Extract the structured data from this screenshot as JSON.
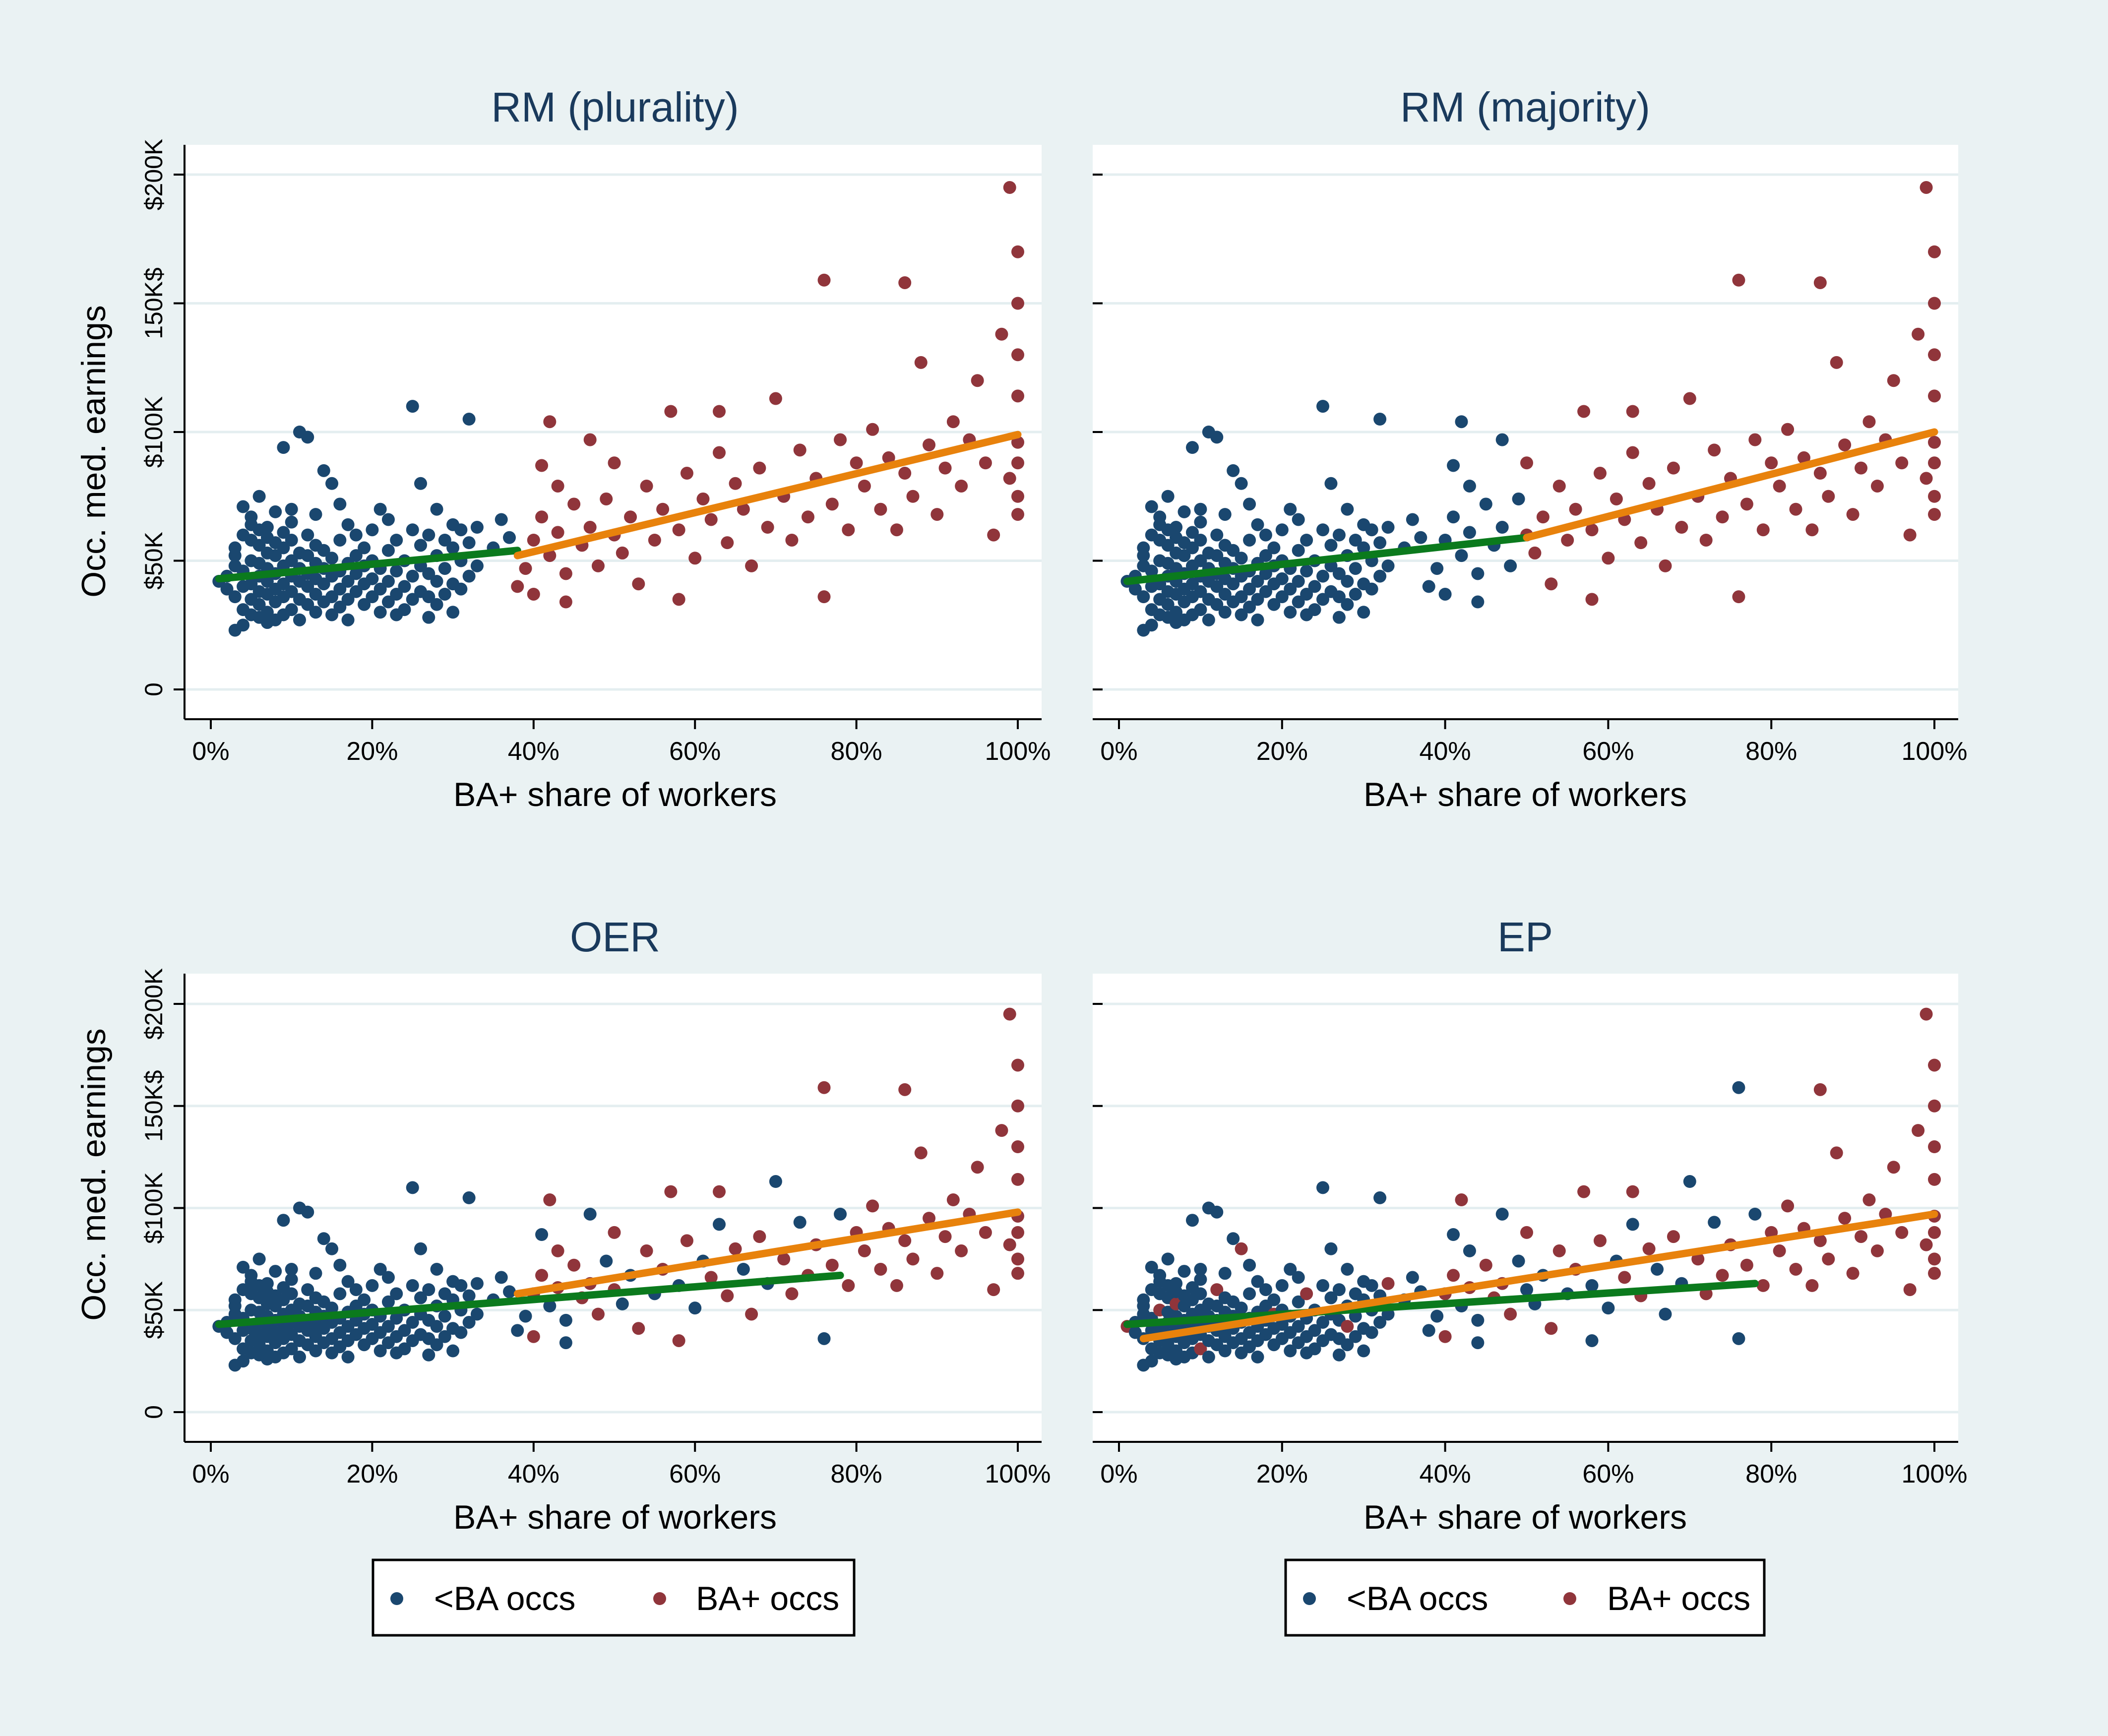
{
  "colors": {
    "background": "#eaf2f3",
    "plot_bg": "#ffffff",
    "grid": "#e4eef0",
    "title": "#1a3a5c",
    "lt_ba": "#1a476f",
    "ba_plus": "#90353b",
    "fit_lt_ba": "#0b7a1d",
    "fit_ba_plus": "#e8820c"
  },
  "axis": {
    "xlabel": "BA+ share of workers",
    "ylabel": "Occ. med. earnings",
    "xticks": [
      {
        "v": 0,
        "label": "0%"
      },
      {
        "v": 20,
        "label": "20%"
      },
      {
        "v": 40,
        "label": "40%"
      },
      {
        "v": 60,
        "label": "60%"
      },
      {
        "v": 80,
        "label": "80%"
      },
      {
        "v": 100,
        "label": "100%"
      }
    ],
    "yticks": [
      {
        "v": 0,
        "label": "0"
      },
      {
        "v": 50,
        "label": "$50K"
      },
      {
        "v": 100,
        "label": "$100K"
      },
      {
        "v": 150,
        "label": "150K$"
      },
      {
        "v": 200,
        "label": "$200K"
      }
    ]
  },
  "legend": {
    "items": [
      {
        "label": "<BA occs",
        "color_key": "lt_ba"
      },
      {
        "label": "BA+ occs",
        "color_key": "ba_plus"
      }
    ]
  },
  "chart_data": [
    {
      "type": "scatter",
      "title": "RM (plurality)",
      "xlabel": "BA+ share of workers",
      "ylabel": "Occ. med. earnings",
      "xlim": [
        0,
        100
      ],
      "ylim": [
        0,
        200
      ],
      "x_unit": "%",
      "y_unit": "$K",
      "threshold": 38,
      "series": [
        {
          "name": "<BA occs",
          "description": "occupations below threshold, BA+ share < 38%"
        },
        {
          "name": "BA+ occs",
          "description": "occupations above threshold, BA+ share >= 38%"
        }
      ],
      "fit_lines": [
        {
          "group": "<BA occs",
          "x": [
            1,
            38
          ],
          "y": [
            43,
            54
          ]
        },
        {
          "group": "BA+ occs",
          "x": [
            38,
            100
          ],
          "y": [
            52,
            99
          ]
        }
      ]
    },
    {
      "type": "scatter",
      "title": "RM (majority)",
      "xlabel": "BA+ share of workers",
      "ylabel": "Occ. med. earnings",
      "xlim": [
        0,
        100
      ],
      "ylim": [
        0,
        200
      ],
      "x_unit": "%",
      "y_unit": "$K",
      "threshold": 50,
      "fit_lines": [
        {
          "group": "<BA occs",
          "x": [
            1,
            50
          ],
          "y": [
            42,
            59
          ]
        },
        {
          "group": "BA+ occs",
          "x": [
            50,
            100
          ],
          "y": [
            59,
            100
          ]
        }
      ]
    },
    {
      "type": "scatter",
      "title": "OER",
      "xlabel": "BA+ share of workers",
      "ylabel": "Occ. med. earnings",
      "xlim": [
        0,
        100
      ],
      "ylim": [
        0,
        200
      ],
      "x_unit": "%",
      "y_unit": "$K",
      "fit_lines": [
        {
          "group": "<BA occs",
          "x": [
            1,
            78
          ],
          "y": [
            43,
            67
          ]
        },
        {
          "group": "BA+ occs",
          "x": [
            38,
            100
          ],
          "y": [
            58,
            98
          ]
        }
      ]
    },
    {
      "type": "scatter",
      "title": "EP",
      "xlabel": "BA+ share of workers",
      "ylabel": "Occ. med. earnings",
      "xlim": [
        0,
        100
      ],
      "ylim": [
        0,
        200
      ],
      "x_unit": "%",
      "y_unit": "$K",
      "fit_lines": [
        {
          "group": "<BA occs",
          "x": [
            1,
            78
          ],
          "y": [
            43,
            63
          ]
        },
        {
          "group": "BA+ occs",
          "x": [
            3,
            100
          ],
          "y": [
            36,
            97
          ]
        }
      ]
    }
  ],
  "occupations": [
    [
      1,
      42
    ],
    [
      2,
      39
    ],
    [
      2,
      44
    ],
    [
      3,
      23
    ],
    [
      3,
      36
    ],
    [
      3,
      48
    ],
    [
      3,
      52
    ],
    [
      3,
      55
    ],
    [
      4,
      25
    ],
    [
      4,
      31
    ],
    [
      4,
      40
    ],
    [
      4,
      46
    ],
    [
      4,
      60
    ],
    [
      4,
      71
    ],
    [
      5,
      29
    ],
    [
      5,
      35
    ],
    [
      5,
      41
    ],
    [
      5,
      50
    ],
    [
      5,
      58
    ],
    [
      5,
      64
    ],
    [
      5,
      67
    ],
    [
      6,
      28
    ],
    [
      6,
      33
    ],
    [
      6,
      38
    ],
    [
      6,
      44
    ],
    [
      6,
      49
    ],
    [
      6,
      56
    ],
    [
      6,
      62
    ],
    [
      6,
      75
    ],
    [
      7,
      26
    ],
    [
      7,
      30
    ],
    [
      7,
      37
    ],
    [
      7,
      42
    ],
    [
      7,
      47
    ],
    [
      7,
      53
    ],
    [
      7,
      59
    ],
    [
      7,
      63
    ],
    [
      8,
      27
    ],
    [
      8,
      34
    ],
    [
      8,
      39
    ],
    [
      8,
      45
    ],
    [
      8,
      52
    ],
    [
      8,
      57
    ],
    [
      8,
      69
    ],
    [
      9,
      29
    ],
    [
      9,
      36
    ],
    [
      9,
      41
    ],
    [
      9,
      48
    ],
    [
      9,
      55
    ],
    [
      9,
      61
    ],
    [
      9,
      94
    ],
    [
      10,
      31
    ],
    [
      10,
      38
    ],
    [
      10,
      44
    ],
    [
      10,
      50
    ],
    [
      10,
      58
    ],
    [
      10,
      65
    ],
    [
      10,
      70
    ],
    [
      11,
      27
    ],
    [
      11,
      35
    ],
    [
      11,
      42
    ],
    [
      11,
      47
    ],
    [
      11,
      53
    ],
    [
      11,
      100
    ],
    [
      12,
      33
    ],
    [
      12,
      40
    ],
    [
      12,
      45
    ],
    [
      12,
      52
    ],
    [
      12,
      60
    ],
    [
      12,
      98
    ],
    [
      13,
      30
    ],
    [
      13,
      37
    ],
    [
      13,
      43
    ],
    [
      13,
      49
    ],
    [
      13,
      56
    ],
    [
      13,
      68
    ],
    [
      14,
      34
    ],
    [
      14,
      41
    ],
    [
      14,
      47
    ],
    [
      14,
      54
    ],
    [
      14,
      85
    ],
    [
      15,
      29
    ],
    [
      15,
      36
    ],
    [
      15,
      44
    ],
    [
      15,
      51
    ],
    [
      15,
      80
    ],
    [
      16,
      32
    ],
    [
      16,
      39
    ],
    [
      16,
      46
    ],
    [
      16,
      58
    ],
    [
      16,
      72
    ],
    [
      17,
      27
    ],
    [
      17,
      35
    ],
    [
      17,
      42
    ],
    [
      17,
      49
    ],
    [
      17,
      64
    ],
    [
      18,
      38
    ],
    [
      18,
      45
    ],
    [
      18,
      52
    ],
    [
      18,
      60
    ],
    [
      19,
      33
    ],
    [
      19,
      41
    ],
    [
      19,
      48
    ],
    [
      19,
      55
    ],
    [
      20,
      36
    ],
    [
      20,
      43
    ],
    [
      20,
      50
    ],
    [
      20,
      62
    ],
    [
      21,
      30
    ],
    [
      21,
      39
    ],
    [
      21,
      47
    ],
    [
      21,
      70
    ],
    [
      22,
      34
    ],
    [
      22,
      42
    ],
    [
      22,
      54
    ],
    [
      22,
      66
    ],
    [
      23,
      29
    ],
    [
      23,
      37
    ],
    [
      23,
      46
    ],
    [
      23,
      58
    ],
    [
      24,
      31
    ],
    [
      24,
      40
    ],
    [
      24,
      50
    ],
    [
      25,
      110
    ],
    [
      25,
      35
    ],
    [
      25,
      44
    ],
    [
      25,
      62
    ],
    [
      26,
      80
    ],
    [
      26,
      38
    ],
    [
      26,
      48
    ],
    [
      26,
      56
    ],
    [
      27,
      28
    ],
    [
      27,
      36
    ],
    [
      27,
      45
    ],
    [
      27,
      60
    ],
    [
      28,
      33
    ],
    [
      28,
      42
    ],
    [
      28,
      52
    ],
    [
      28,
      70
    ],
    [
      29,
      37
    ],
    [
      29,
      47
    ],
    [
      29,
      58
    ],
    [
      30,
      30
    ],
    [
      30,
      41
    ],
    [
      30,
      55
    ],
    [
      30,
      64
    ],
    [
      31,
      39
    ],
    [
      31,
      50
    ],
    [
      31,
      62
    ],
    [
      32,
      105
    ],
    [
      32,
      44
    ],
    [
      32,
      57
    ],
    [
      33,
      48
    ],
    [
      33,
      63
    ],
    [
      35,
      55
    ],
    [
      36,
      66
    ],
    [
      37,
      59
    ],
    [
      38,
      40
    ],
    [
      39,
      47
    ],
    [
      40,
      58
    ],
    [
      40,
      37
    ],
    [
      41,
      87
    ],
    [
      41,
      67
    ],
    [
      42,
      104
    ],
    [
      42,
      52
    ],
    [
      43,
      79
    ],
    [
      43,
      61
    ],
    [
      44,
      34
    ],
    [
      44,
      45
    ],
    [
      45,
      72
    ],
    [
      46,
      56
    ],
    [
      47,
      97
    ],
    [
      47,
      63
    ],
    [
      48,
      48
    ],
    [
      49,
      74
    ],
    [
      50,
      60
    ],
    [
      50,
      88
    ],
    [
      51,
      53
    ],
    [
      52,
      67
    ],
    [
      53,
      41
    ],
    [
      54,
      79
    ],
    [
      55,
      58
    ],
    [
      56,
      70
    ],
    [
      57,
      108
    ],
    [
      58,
      62
    ],
    [
      58,
      35
    ],
    [
      59,
      84
    ],
    [
      60,
      51
    ],
    [
      61,
      74
    ],
    [
      62,
      66
    ],
    [
      63,
      108
    ],
    [
      63,
      92
    ],
    [
      64,
      57
    ],
    [
      65,
      80
    ],
    [
      66,
      70
    ],
    [
      67,
      48
    ],
    [
      68,
      86
    ],
    [
      69,
      63
    ],
    [
      70,
      113
    ],
    [
      71,
      75
    ],
    [
      72,
      58
    ],
    [
      73,
      93
    ],
    [
      74,
      67
    ],
    [
      75,
      82
    ],
    [
      76,
      36
    ],
    [
      76,
      159
    ],
    [
      77,
      72
    ],
    [
      78,
      97
    ],
    [
      79,
      62
    ],
    [
      80,
      88
    ],
    [
      81,
      79
    ],
    [
      82,
      101
    ],
    [
      83,
      70
    ],
    [
      84,
      90
    ],
    [
      85,
      62
    ],
    [
      86,
      158
    ],
    [
      86,
      84
    ],
    [
      87,
      75
    ],
    [
      88,
      127
    ],
    [
      89,
      95
    ],
    [
      90,
      68
    ],
    [
      91,
      86
    ],
    [
      92,
      104
    ],
    [
      93,
      79
    ],
    [
      94,
      97
    ],
    [
      95,
      120
    ],
    [
      96,
      88
    ],
    [
      97,
      60
    ],
    [
      98,
      138
    ],
    [
      99,
      195
    ],
    [
      99,
      82
    ],
    [
      100,
      170
    ],
    [
      100,
      150
    ],
    [
      100,
      130
    ],
    [
      100,
      114
    ],
    [
      100,
      96
    ],
    [
      100,
      88
    ],
    [
      100,
      75
    ],
    [
      100,
      68
    ]
  ]
}
